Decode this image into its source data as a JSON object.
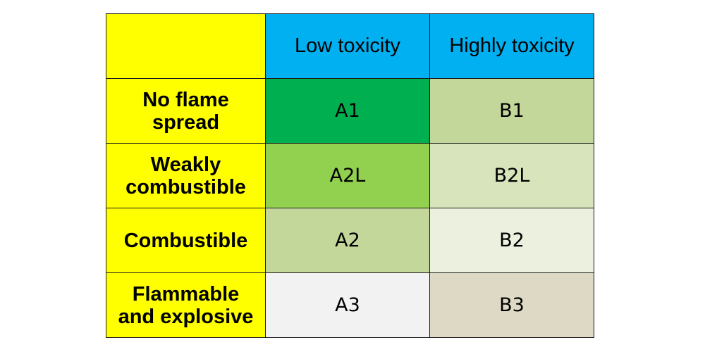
{
  "chart_data": {
    "type": "table",
    "corner": "",
    "columns": [
      "Low toxicity",
      "Highly toxicity"
    ],
    "rows": [
      {
        "label": [
          "No flame",
          "spread"
        ],
        "cells": [
          "A1",
          "B1"
        ]
      },
      {
        "label": [
          "Weakly",
          "combustible"
        ],
        "cells": [
          "A2L",
          "B2L"
        ]
      },
      {
        "label": [
          "Combustible"
        ],
        "cells": [
          "A2",
          "B2"
        ]
      },
      {
        "label": [
          "Flammable",
          "and explosive"
        ],
        "cells": [
          "A3",
          "B3"
        ]
      }
    ]
  },
  "colors": {
    "row_header_bg": "#ffff00",
    "col_header_bg": "#00b0f0",
    "cells": [
      [
        "#00b050",
        "#c4d79b"
      ],
      [
        "#92d050",
        "#d8e4bc"
      ],
      [
        "#c4d79b",
        "#ebf1de"
      ],
      [
        "#f2f2f2",
        "#ddd9c4"
      ]
    ]
  }
}
